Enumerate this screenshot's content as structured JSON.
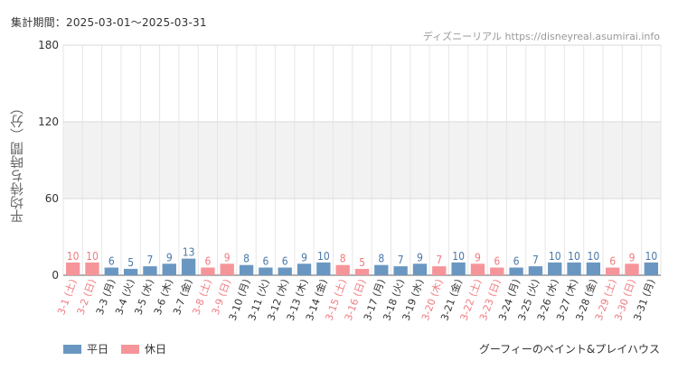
{
  "header": {
    "period": "集計期間：2025-03-01～2025-03-31",
    "credit": "ディズニーリアル https://disneyreal.asumirai.info"
  },
  "footer": {
    "attraction": "グーフィーのペイント&プレイハウス"
  },
  "colors": {
    "weekday": "#6a97c1",
    "holiday": "#f5959a",
    "weekday_label": "#4a78a8",
    "holiday_label": "#f07b80",
    "band": "#f2f2f2",
    "grid": "#e6e6e6"
  },
  "chart_data": {
    "type": "bar",
    "ylabel": "平均待ち時間（分）",
    "xlabel": "",
    "ylim": [
      0,
      180
    ],
    "yticks": [
      0,
      60,
      120,
      180
    ],
    "grid": true,
    "legend_position": "bottom-left",
    "legend": [
      {
        "key": "weekday",
        "label": "平日"
      },
      {
        "key": "holiday",
        "label": "休日"
      }
    ],
    "categories": [
      "3-1 (土)",
      "3-2 (日)",
      "3-3 (月)",
      "3-4 (火)",
      "3-5 (水)",
      "3-6 (木)",
      "3-7 (金)",
      "3-8 (土)",
      "3-9 (日)",
      "3-10 (月)",
      "3-11 (火)",
      "3-12 (水)",
      "3-13 (木)",
      "3-14 (金)",
      "3-15 (土)",
      "3-16 (日)",
      "3-17 (月)",
      "3-18 (火)",
      "3-19 (水)",
      "3-20 (木)",
      "3-21 (金)",
      "3-22 (土)",
      "3-23 (日)",
      "3-24 (月)",
      "3-25 (火)",
      "3-26 (水)",
      "3-27 (木)",
      "3-28 (金)",
      "3-29 (土)",
      "3-30 (日)",
      "3-31 (月)"
    ],
    "values": [
      10,
      10,
      6,
      5,
      7,
      9,
      13,
      6,
      9,
      8,
      6,
      6,
      9,
      10,
      8,
      5,
      8,
      7,
      9,
      7,
      10,
      9,
      6,
      6,
      7,
      10,
      10,
      10,
      6,
      9,
      10
    ],
    "day_type": [
      "holiday",
      "holiday",
      "weekday",
      "weekday",
      "weekday",
      "weekday",
      "weekday",
      "holiday",
      "holiday",
      "weekday",
      "weekday",
      "weekday",
      "weekday",
      "weekday",
      "holiday",
      "holiday",
      "weekday",
      "weekday",
      "weekday",
      "holiday",
      "weekday",
      "holiday",
      "holiday",
      "weekday",
      "weekday",
      "weekday",
      "weekday",
      "weekday",
      "holiday",
      "holiday",
      "weekday"
    ]
  }
}
